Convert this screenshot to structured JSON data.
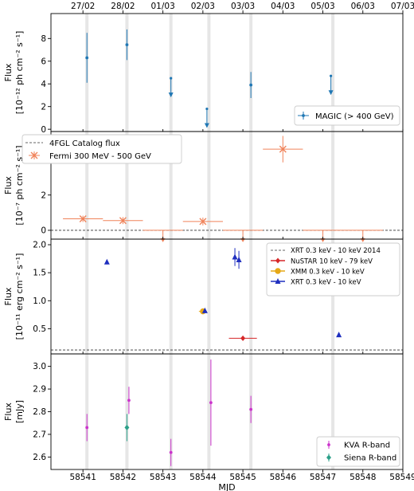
{
  "chart_data": [
    {
      "type": "scatter",
      "panel": "magic",
      "ylabel_lines": [
        "Flux",
        "[10⁻¹² ph cm⁻² s⁻¹]"
      ],
      "ylim": [
        -0.2,
        10.2
      ],
      "yticks": [
        0,
        2,
        4,
        6,
        8
      ],
      "series": [
        {
          "name": "MAGIC (> 400 GeV)",
          "color": "#1f77b4",
          "marker": "dot",
          "points": [
            {
              "x": 58541.1,
              "y": 6.3,
              "yerr": 2.2
            },
            {
              "x": 58542.1,
              "y": 7.45,
              "yerr": 1.35
            },
            {
              "x": 58543.2,
              "y": 4.5,
              "upper_limit": true
            },
            {
              "x": 58544.1,
              "y": 1.8,
              "upper_limit": true
            },
            {
              "x": 58545.2,
              "y": 3.9,
              "yerr": 1.15
            },
            {
              "x": 58547.2,
              "y": 4.7,
              "upper_limit": true
            }
          ]
        }
      ],
      "legend": {
        "position": "lower right"
      }
    },
    {
      "type": "scatter",
      "panel": "fermi",
      "ylabel_lines": [
        "Flux",
        "[10⁻⁷ ph cm⁻² s⁻¹]"
      ],
      "ylim": [
        -0.5,
        5.6
      ],
      "yticks": [
        0,
        2,
        4
      ],
      "reference_line": {
        "name": "4FGL Catalog flux",
        "y": 0
      },
      "series": [
        {
          "name": "Fermi 300 MeV - 500 GeV",
          "color": "#f0835a",
          "marker": "x",
          "points": [
            {
              "x": 58541.0,
              "xerr": 0.5,
              "y": 0.65,
              "yerr": 0.18
            },
            {
              "x": 58542.0,
              "xerr": 0.5,
              "y": 0.55,
              "yerr": 0.2
            },
            {
              "x": 58543.0,
              "xerr": 0.5,
              "y": 0.0,
              "upper_limit": true
            },
            {
              "x": 58544.0,
              "xerr": 0.5,
              "y": 0.5,
              "yerr": 0.22
            },
            {
              "x": 58545.0,
              "xerr": 0.5,
              "y": 0.0,
              "upper_limit": true
            },
            {
              "x": 58546.0,
              "xerr": 0.5,
              "y": 4.6,
              "yerr": 0.75
            },
            {
              "x": 58547.0,
              "xerr": 0.5,
              "y": 0.0,
              "upper_limit": true
            },
            {
              "x": 58548.0,
              "xerr": 0.5,
              "y": 0.0,
              "upper_limit": true
            }
          ]
        }
      ],
      "legend": {
        "position": "upper left"
      }
    },
    {
      "type": "scatter",
      "panel": "xray",
      "ylabel_lines": [
        "Flux",
        "[10⁻¹¹ erg cm⁻² s⁻¹]"
      ],
      "ylim": [
        0.05,
        2.1
      ],
      "yticks": [
        0.5,
        1.0,
        1.5,
        2.0
      ],
      "ytick_labels": [
        "0.5",
        "1.0",
        "1.5",
        "2.0"
      ],
      "reference_line": {
        "name": "XRT 0.3 keV - 10 keV 2014",
        "y": 0.12
      },
      "series": [
        {
          "name": "NuSTAR 10 keV - 79 keV",
          "color": "#d62728",
          "marker": "diamond",
          "points": [
            {
              "x": 58545.0,
              "xerr": 0.35,
              "y": 0.33,
              "yerr": 0.01
            }
          ]
        },
        {
          "name": "XMM 0.3 keV - 10 keV",
          "color": "#e6a817",
          "marker": "circle",
          "points": [
            {
              "x": 58544.0,
              "xerr": 0.1,
              "y": 0.81,
              "yerr": 0.02
            }
          ]
        },
        {
          "name": "XRT 0.3 keV - 10 keV",
          "color": "#1f2fbf",
          "marker": "triangle",
          "points": [
            {
              "x": 58541.6,
              "y": 1.69,
              "yerr": 0.04
            },
            {
              "x": 58544.05,
              "y": 0.82,
              "yerr": 0.04
            },
            {
              "x": 58544.8,
              "y": 1.78,
              "yerr": 0.16
            },
            {
              "x": 58544.9,
              "y": 1.73,
              "yerr": 0.16
            },
            {
              "x": 58547.4,
              "y": 0.39,
              "yerr": 0.02
            }
          ]
        }
      ],
      "legend": {
        "position": "upper right"
      }
    },
    {
      "type": "scatter",
      "panel": "optical",
      "ylabel_lines": [
        "Flux",
        "[mJy]"
      ],
      "ylim": [
        2.545,
        3.055
      ],
      "yticks": [
        2.6,
        2.7,
        2.8,
        2.9,
        3.0
      ],
      "ytick_labels": [
        "2.6",
        "2.7",
        "2.8",
        "2.9",
        "3.0"
      ],
      "series": [
        {
          "name": "KVA R-band",
          "color": "#cc33cc",
          "marker": "dot",
          "points": [
            {
              "x": 58541.1,
              "y": 2.73,
              "yerr": 0.06
            },
            {
              "x": 58542.15,
              "y": 2.85,
              "yerr": 0.06
            },
            {
              "x": 58543.2,
              "y": 2.62,
              "yerr": 0.06
            },
            {
              "x": 58544.2,
              "y": 2.84,
              "yerr": 0.19
            },
            {
              "x": 58545.2,
              "y": 2.81,
              "yerr": 0.06
            }
          ]
        },
        {
          "name": "Siena R-band",
          "color": "#2ca089",
          "marker": "diamond",
          "points": [
            {
              "x": 58542.1,
              "y": 2.73,
              "yerr": 0.06
            }
          ]
        }
      ],
      "legend": {
        "position": "lower right"
      }
    }
  ],
  "x_axis": {
    "label": "MJD",
    "xlim": [
      58540.2,
      58549.0
    ],
    "ticks": [
      58541,
      58542,
      58543,
      58544,
      58545,
      58546,
      58547,
      58548,
      58549
    ],
    "tick_labels": [
      "58541",
      "58542",
      "58543",
      "58544",
      "58545",
      "58546",
      "58547",
      "58548",
      "58549"
    ]
  },
  "top_axis": {
    "ticks": [
      58541.0,
      58542.0,
      58543.0,
      58544.0,
      58545.0,
      58546.0,
      58547.0,
      58548.0,
      58549.0
    ],
    "tick_labels": [
      "27/02",
      "28/02",
      "01/03",
      "02/03",
      "03/03",
      "04/03",
      "05/03",
      "06/03",
      "07/03"
    ]
  },
  "observation_bands": [
    58541.1,
    58542.1,
    58543.2,
    58544.15,
    58545.2,
    58547.25
  ],
  "grid": false
}
